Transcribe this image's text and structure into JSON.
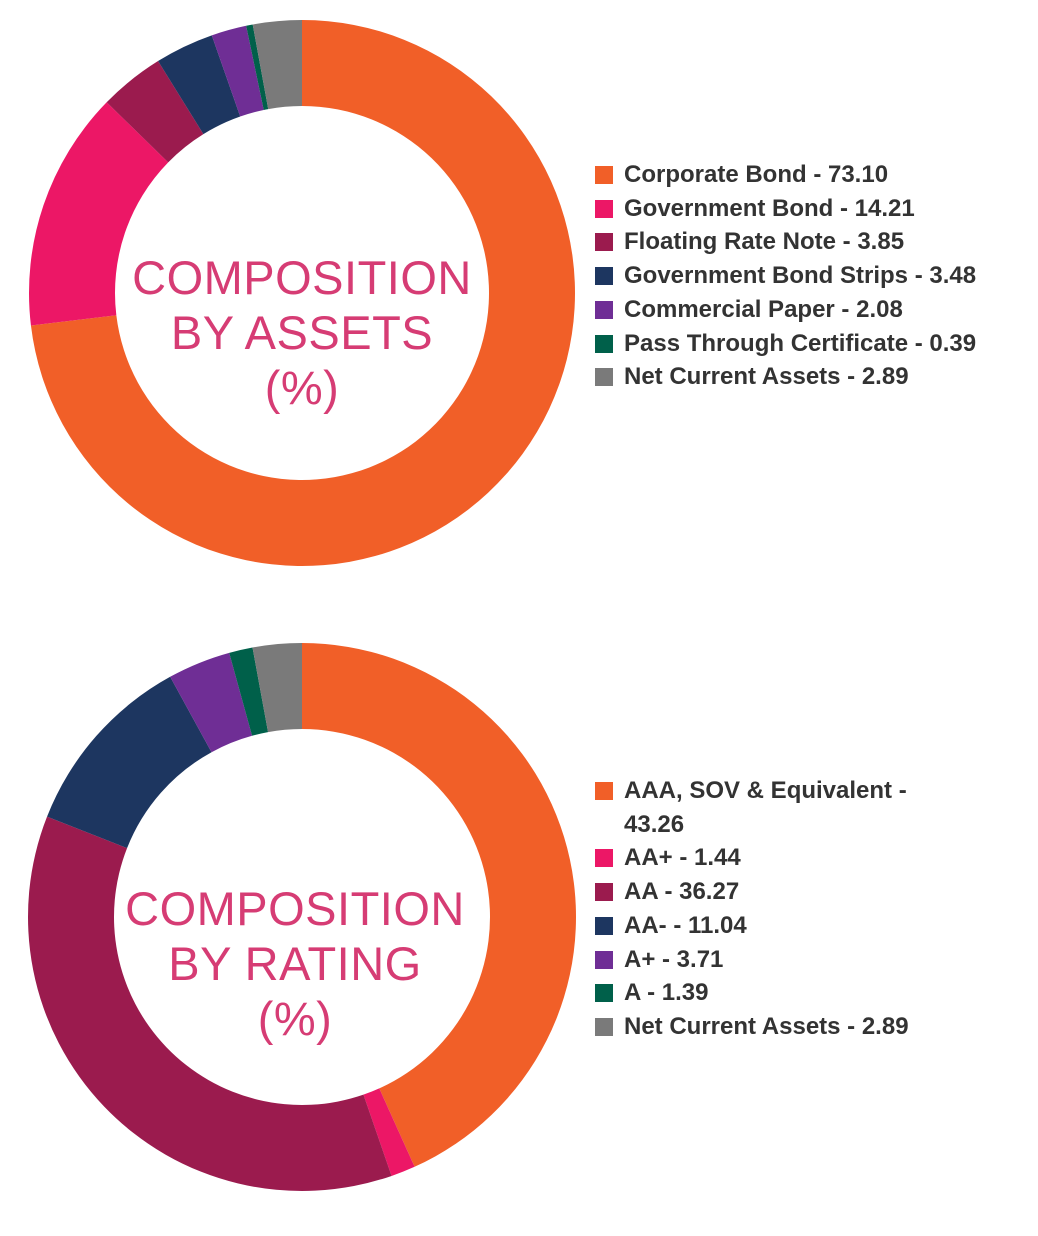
{
  "chart_data": [
    {
      "type": "pie",
      "donut": true,
      "title_lines": [
        "COMPOSITION",
        "BY ASSETS",
        "(%)"
      ],
      "title": "COMPOSITION BY ASSETS (%)",
      "legend_position": "right",
      "categories": [
        "Corporate Bond",
        "Government Bond",
        "Floating Rate Note",
        "Government Bond Strips",
        "Commercial Paper",
        "Pass Through Certificate",
        "Net Current Assets"
      ],
      "values": [
        73.1,
        14.21,
        3.85,
        3.48,
        2.08,
        0.39,
        2.89
      ],
      "colors": [
        "#f15f28",
        "#ec1766",
        "#9b1b4e",
        "#1d3660",
        "#6f2e95",
        "#00604a",
        "#7a7a7a"
      ],
      "legend_labels": [
        "Corporate Bond - 73.10",
        "Government Bond - 14.21",
        "Floating Rate Note - 3.85",
        "Government Bond Strips - 3.48",
        "Commercial Paper - 2.08",
        "Pass Through Certificate - 0.39",
        "Net Current Assets - 2.89"
      ]
    },
    {
      "type": "pie",
      "donut": true,
      "title_lines": [
        "COMPOSITION",
        "BY RATING",
        "(%)"
      ],
      "title": "COMPOSITION BY RATING (%)",
      "legend_position": "right",
      "categories": [
        "AAA, SOV & Equivalent",
        "AA+",
        "AA",
        "AA-",
        "A+",
        "A",
        "Net Current Assets"
      ],
      "values": [
        43.26,
        1.44,
        36.27,
        11.04,
        3.71,
        1.39,
        2.89
      ],
      "colors": [
        "#f15f28",
        "#ec1766",
        "#9b1b4e",
        "#1d3660",
        "#6f2e95",
        "#00604a",
        "#7a7a7a"
      ],
      "legend_labels": [
        "AAA, SOV & Equivalent - 43.26",
        "AA+ - 1.44",
        "AA - 36.27",
        "AA- - 11.04",
        "A+ - 3.71",
        "A - 1.39",
        "Net Current Assets - 2.89"
      ]
    }
  ]
}
